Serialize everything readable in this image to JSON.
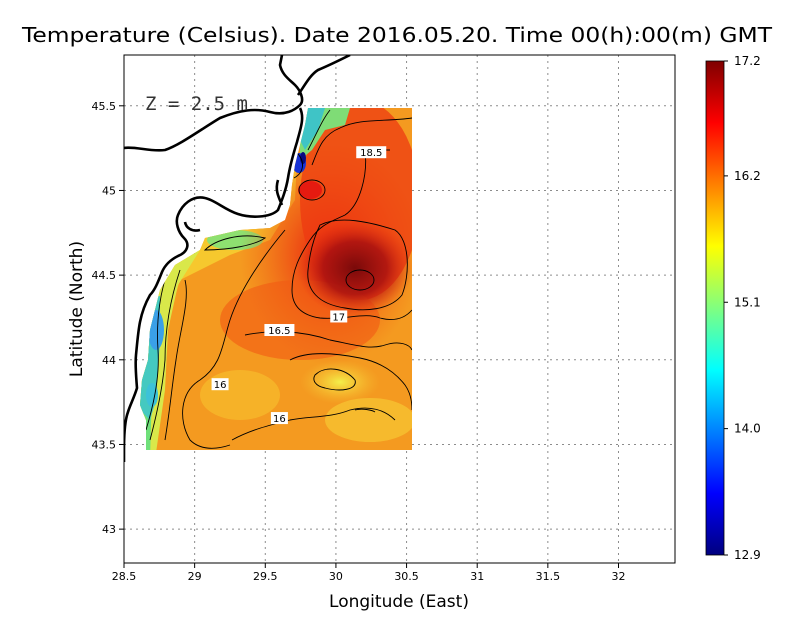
{
  "chart_data": {
    "type": "heatmap",
    "title": "Temperature (Celsius). Date 2016.05.20. Time 00(h):00(m)  GMT",
    "xlabel": "Longitude (East)",
    "ylabel": "Latitude (North)",
    "depth_label": "Z  =  2.5  m",
    "xlim": [
      28.5,
      32.4
    ],
    "ylim": [
      42.8,
      45.8
    ],
    "x_ticks": [
      28.5,
      29,
      29.5,
      30,
      30.5,
      31,
      31.5,
      32
    ],
    "x_tick_labels": [
      "28.5",
      "29",
      "29.5",
      "30",
      "30.5",
      "31",
      "31.5",
      "32"
    ],
    "y_ticks": [
      43,
      43.5,
      44,
      44.5,
      45,
      45.5
    ],
    "y_tick_labels": [
      "43",
      "43.5",
      "44",
      "44.5",
      "45",
      "45.5"
    ],
    "grid": true,
    "colorbar": {
      "min": 12.9,
      "max": 17.2,
      "ticks": [
        12.9,
        14.0,
        15.1,
        16.2,
        17.2
      ],
      "tick_labels": [
        "12.9",
        "14.0",
        "15.1",
        "16.2",
        "17.2"
      ],
      "colors": [
        "#00007f",
        "#0000ff",
        "#0080ff",
        "#00ffff",
        "#80ff80",
        "#ffff00",
        "#ff8000",
        "#ff0000",
        "#7f0000"
      ]
    },
    "contour_labels": [
      {
        "text": "18.5",
        "lon": 30.25,
        "lat": 45.22
      },
      {
        "text": "17",
        "lon": 30.02,
        "lat": 44.25
      },
      {
        "text": "16.5",
        "lon": 29.6,
        "lat": 44.17
      },
      {
        "text": "16",
        "lon": 29.18,
        "lat": 43.85
      },
      {
        "text": "16",
        "lon": 29.6,
        "lat": 43.65
      }
    ],
    "warm_core": {
      "lon": 30.2,
      "lat": 44.55,
      "value": 17.1
    }
  }
}
